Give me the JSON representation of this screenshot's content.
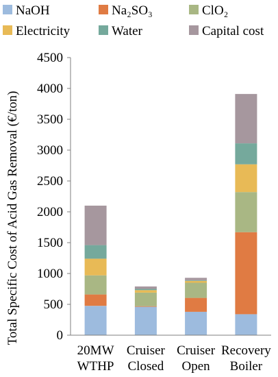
{
  "chart_data": {
    "type": "bar",
    "stacked": true,
    "categories": [
      [
        "20MW",
        "WTHP"
      ],
      [
        "Cruiser",
        "Closed"
      ],
      [
        "Cruiser",
        "Open"
      ],
      [
        "Recovery",
        "Boiler"
      ]
    ],
    "series": [
      {
        "name": "NaOH",
        "color": "#9DBBDE",
        "values": [
          475,
          460,
          380,
          340
        ]
      },
      {
        "name": "Na₂SO₃",
        "color": "#E07B43",
        "values": [
          185,
          10,
          225,
          1330
        ]
      },
      {
        "name": "ClO₂",
        "color": "#A9B784",
        "values": [
          310,
          220,
          245,
          650
        ]
      },
      {
        "name": "Electricity",
        "color": "#E8BA56",
        "values": [
          270,
          40,
          30,
          450
        ]
      },
      {
        "name": "Water",
        "color": "#75A99C",
        "values": [
          220,
          20,
          10,
          340
        ]
      },
      {
        "name": "Capital cost",
        "color": "#A6979E",
        "values": [
          640,
          40,
          40,
          800
        ]
      }
    ],
    "ylabel": "Total Specific Cost of Acid Gas Removal (€/ton)",
    "ylim": [
      0,
      4500
    ],
    "yticks": [
      0,
      500,
      1000,
      1500,
      2000,
      2500,
      3000,
      3500,
      4000,
      4500
    ],
    "grid": false,
    "legend_position": "top"
  }
}
